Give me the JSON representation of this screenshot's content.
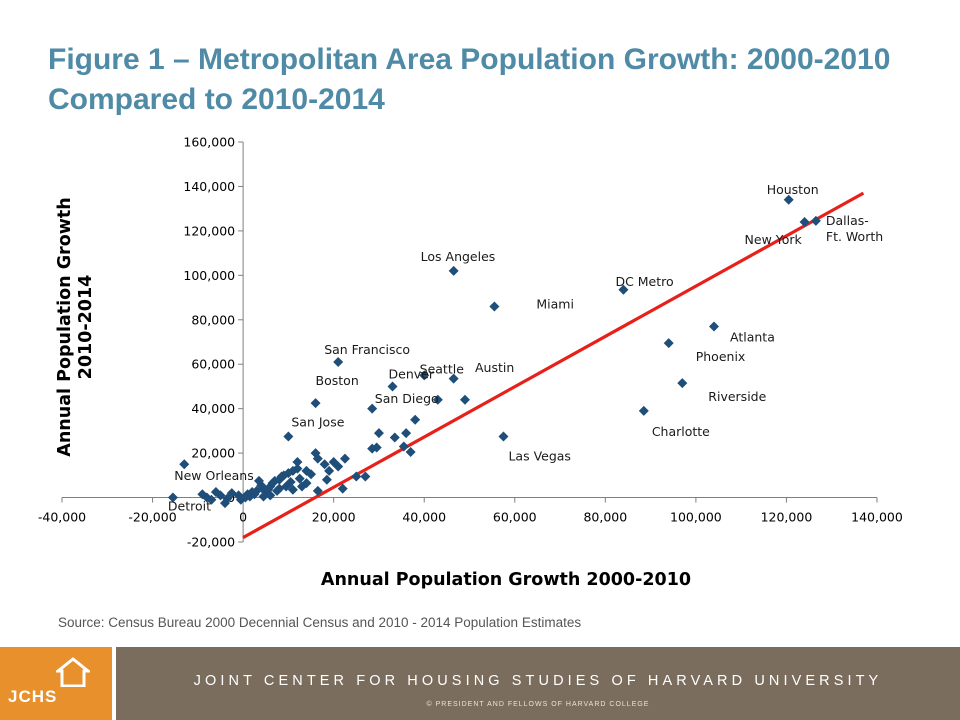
{
  "title": "Figure 1 – Metropolitan Area Population Growth: 2000-2010 Compared to 2010-2014",
  "source": "Source: Census Bureau 2000 Decennial Census and 2010 - 2014 Population Estimates",
  "footer": {
    "logo": "JCHS",
    "org": "JOINT CENTER FOR HOUSING STUDIES OF HARVARD UNIVERSITY",
    "copyright": "© PRESIDENT AND FELLOWS OF HARVARD COLLEGE"
  },
  "colors": {
    "title": "#4f8aa6",
    "marker": "#1f4e79",
    "trend": "#e8201a",
    "footer_band": "#7b6d5d",
    "logo_box": "#e7902c"
  },
  "chart_data": {
    "type": "scatter",
    "xlabel": "Annual Population Growth 2000-2010",
    "ylabel": "Annual Population Growth 2010-2014",
    "xlim": [
      -40000,
      140000
    ],
    "ylim": [
      -20000,
      160000
    ],
    "x_ticks": [
      -40000,
      -20000,
      0,
      20000,
      40000,
      60000,
      80000,
      100000,
      120000,
      140000
    ],
    "y_ticks": [
      -20000,
      0,
      20000,
      40000,
      60000,
      80000,
      100000,
      120000,
      140000,
      160000
    ],
    "x_tick_labels": [
      "-40,000",
      "-20,000",
      "0",
      "20,000",
      "40,000",
      "60,000",
      "80,000",
      "100,000",
      "120,000",
      "140,000"
    ],
    "y_tick_labels": [
      "-20,000",
      "0",
      "20,000",
      "40,000",
      "60,000",
      "80,000",
      "100,000",
      "120,000",
      "140,000",
      "160,000"
    ],
    "grid": false,
    "labeled_points": [
      {
        "label": "Houston",
        "x": 120500,
        "y": 134000
      },
      {
        "label": "Dallas-Ft. Worth",
        "x": 126500,
        "y": 124500
      },
      {
        "label": "New York",
        "x": 124000,
        "y": 124000
      },
      {
        "label": "Los Angeles",
        "x": 46500,
        "y": 102000
      },
      {
        "label": "DC Metro",
        "x": 84000,
        "y": 93500
      },
      {
        "label": "Miami",
        "x": 55500,
        "y": 86000
      },
      {
        "label": "Atlanta",
        "x": 104000,
        "y": 77000
      },
      {
        "label": "Phoenix",
        "x": 94000,
        "y": 69500
      },
      {
        "label": "Riverside",
        "x": 97000,
        "y": 51500
      },
      {
        "label": "Charlotte",
        "x": 88500,
        "y": 39000
      },
      {
        "label": "San Francisco",
        "x": 21000,
        "y": 61000
      },
      {
        "label": "Seattle",
        "x": 46500,
        "y": 53500
      },
      {
        "label": "Denver",
        "x": 33000,
        "y": 50000
      },
      {
        "label": "Austin",
        "x": 49000,
        "y": 44000
      },
      {
        "label": "San Diego",
        "x": 43000,
        "y": 44000
      },
      {
        "label": "Boston",
        "x": 16000,
        "y": 42500
      },
      {
        "label": "San Jose",
        "x": 10000,
        "y": 27500
      },
      {
        "label": "Las Vegas",
        "x": 57500,
        "y": 27500
      },
      {
        "label": "New Orleans",
        "x": -13000,
        "y": 15000
      },
      {
        "label": "Detroit",
        "x": -15500,
        "y": 0
      }
    ],
    "other_points": [
      [
        38000,
        35000
      ],
      [
        40000,
        55000
      ],
      [
        28500,
        40000
      ],
      [
        30000,
        29000
      ],
      [
        36000,
        29000
      ],
      [
        33500,
        27000
      ],
      [
        35500,
        23000
      ],
      [
        37000,
        20500
      ],
      [
        28500,
        22000
      ],
      [
        29500,
        22500
      ],
      [
        25000,
        9500
      ],
      [
        27000,
        9500
      ],
      [
        22500,
        17500
      ],
      [
        21000,
        14000
      ],
      [
        18000,
        15000
      ],
      [
        16000,
        20000
      ],
      [
        16500,
        17500
      ],
      [
        14000,
        12000
      ],
      [
        15000,
        10500
      ],
      [
        12000,
        16000
      ],
      [
        12000,
        13000
      ],
      [
        11000,
        12000
      ],
      [
        10000,
        11000
      ],
      [
        9000,
        10000
      ],
      [
        8500,
        9500
      ],
      [
        8000,
        8000
      ],
      [
        7000,
        7500
      ],
      [
        6500,
        6500
      ],
      [
        6000,
        5000
      ],
      [
        5500,
        3500
      ],
      [
        5000,
        2500
      ],
      [
        4500,
        4000
      ],
      [
        4000,
        5500
      ],
      [
        3500,
        7500
      ],
      [
        3000,
        3000
      ],
      [
        2500,
        1500
      ],
      [
        2000,
        2500
      ],
      [
        1500,
        500
      ],
      [
        1000,
        1500
      ],
      [
        500,
        0
      ],
      [
        -500,
        -1000
      ],
      [
        -1000,
        1000
      ],
      [
        -2500,
        2000
      ],
      [
        -3500,
        -500
      ],
      [
        -4000,
        -2500
      ],
      [
        -5000,
        1000
      ],
      [
        -6000,
        2500
      ],
      [
        -7000,
        -1000
      ],
      [
        -8000,
        0
      ],
      [
        -9000,
        1500
      ],
      [
        13000,
        5000
      ],
      [
        14000,
        6500
      ],
      [
        16500,
        3000
      ],
      [
        18500,
        8000
      ],
      [
        22000,
        4000
      ],
      [
        19000,
        12000
      ],
      [
        20000,
        16000
      ],
      [
        10500,
        7000
      ],
      [
        9500,
        5000
      ],
      [
        8000,
        4000
      ],
      [
        7500,
        3000
      ],
      [
        6000,
        1000
      ],
      [
        4500,
        500
      ],
      [
        11000,
        3500
      ],
      [
        12500,
        8500
      ]
    ],
    "trendline": {
      "x": [
        0,
        137000
      ],
      "y": [
        -18000,
        137000
      ]
    },
    "marker": "diamond"
  }
}
